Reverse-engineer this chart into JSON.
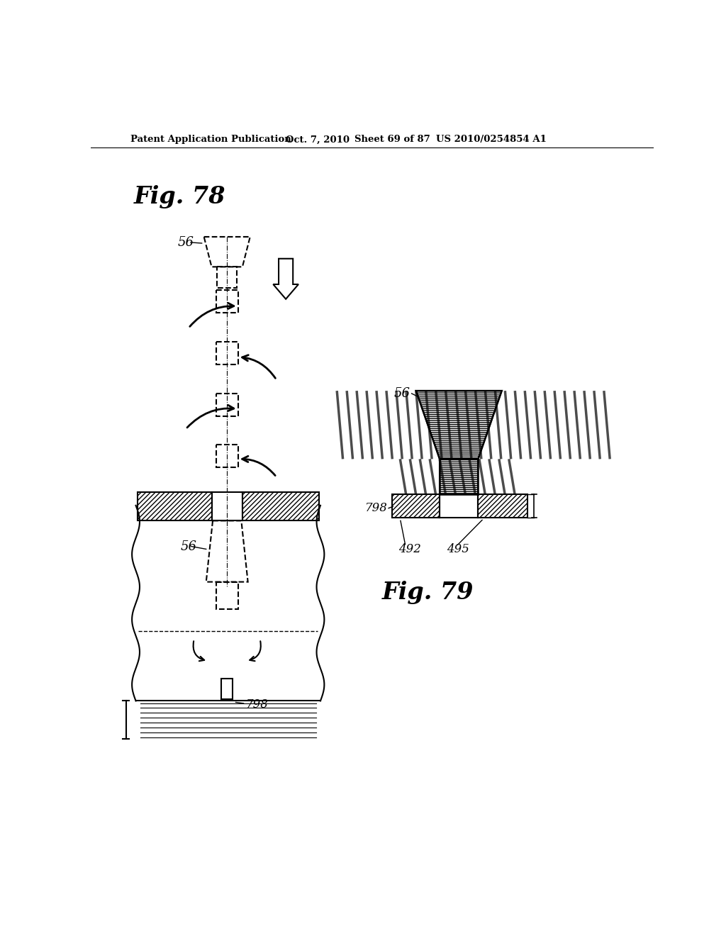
{
  "background_color": "#ffffff",
  "header_text": "Patent Application Publication",
  "header_date": "Oct. 7, 2010",
  "header_sheet": "Sheet 69 of 87",
  "header_patent": "US 2010/0254854 A1",
  "fig78_label": "Fig. 78",
  "fig79_label": "Fig. 79",
  "label_56": "56",
  "label_798": "798",
  "label_492": "492",
  "label_495": "495"
}
